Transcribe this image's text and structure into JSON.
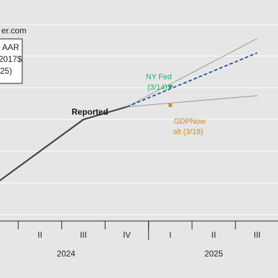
{
  "header": {
    "source_fragment": "er.com"
  },
  "legend_box": {
    "lines": [
      "AAR",
      "2017$",
      "25)"
    ]
  },
  "chart_data": {
    "type": "line",
    "x_quarter_labels": [
      "II",
      "III",
      "IV",
      "I",
      "II",
      "III"
    ],
    "x_year_labels": [
      "2024",
      "2025"
    ],
    "series": [
      {
        "name": "Reported",
        "points": [
          [
            0,
            0.0
          ],
          [
            2,
            2.0
          ],
          [
            3,
            2.4
          ]
        ]
      },
      {
        "name": "",
        "points": [
          [
            3,
            2.4
          ],
          [
            6,
            4.1
          ]
        ]
      },
      {
        "name": "",
        "points": [
          [
            3,
            2.4
          ],
          [
            6,
            4.55
          ]
        ]
      },
      {
        "name": "",
        "points": [
          [
            3,
            2.4
          ],
          [
            6,
            2.75
          ]
        ]
      }
    ],
    "markers": [
      {
        "name": "NY Fed (3/14)",
        "x": 4.0,
        "y": 3.0,
        "color": "#22aa66",
        "shape": "triangle-down"
      },
      {
        "name": "GDPNow alt (3/18)",
        "x": 4.0,
        "y": 2.45,
        "color": "#cc8a1e",
        "shape": "square"
      }
    ],
    "xlim": [
      0.2,
      6.2
    ],
    "ylim": [
      -1.2,
      5.0
    ],
    "grid": true,
    "colors": {
      "reported": "#444444",
      "forecast": "#1f4e9e",
      "bands": "#888888",
      "background": "#e6e6e6",
      "grid": "#ffffff",
      "nyfed": "#22aa66",
      "gdpnow": "#cc8a1e"
    }
  },
  "annotations": {
    "reported": "Reported",
    "nyfed": [
      "NY Fed",
      "(3/14)"
    ],
    "gdpnow": [
      "GDPNow",
      "alt (3/18)"
    ]
  }
}
